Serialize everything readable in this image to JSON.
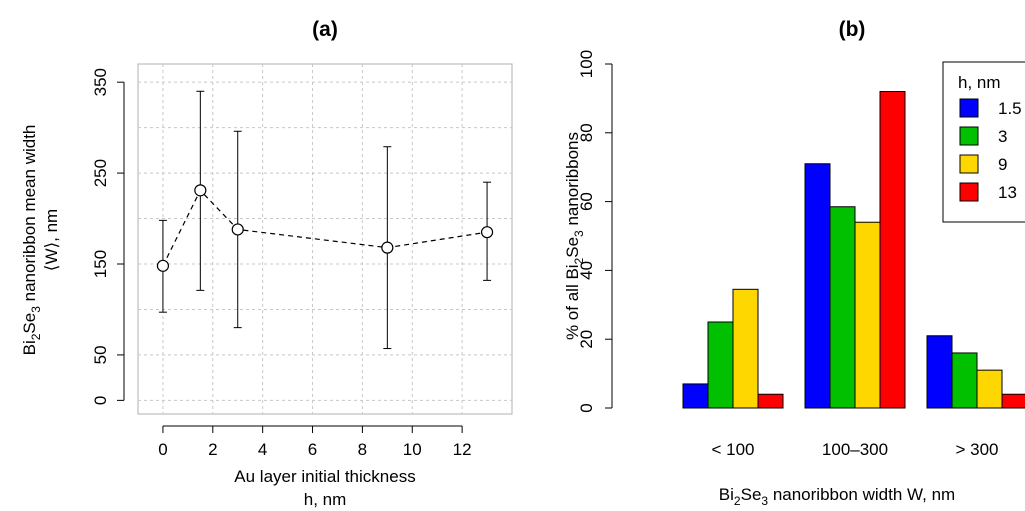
{
  "chart_data": [
    {
      "type": "scatter",
      "title": "(a)",
      "xlabel_line1": "Au layer initial thickness",
      "xlabel_line2": "h, nm",
      "ylabel_line1_pre": "Bi",
      "ylabel_line1_sub1": "2",
      "ylabel_line1_mid": "Se",
      "ylabel_line1_sub2": "3",
      "ylabel_line1_post": " nanoribbon mean width",
      "ylabel_line2": "⟨W⟩, nm",
      "xlim": [
        -1,
        14
      ],
      "ylim": [
        -15,
        370
      ],
      "xticks": [
        0,
        2,
        4,
        6,
        8,
        10,
        12
      ],
      "yticks": [
        0,
        50,
        150,
        250,
        350
      ],
      "xgrid": [
        0,
        2,
        4,
        6,
        8,
        10,
        12
      ],
      "ygrid": [
        0,
        50,
        100,
        150,
        200,
        250,
        300,
        350
      ],
      "grid": true,
      "points": [
        {
          "x": 0,
          "y": 148,
          "lo": 97,
          "hi": 198
        },
        {
          "x": 1.5,
          "y": 231,
          "lo": 121,
          "hi": 340
        },
        {
          "x": 3,
          "y": 188,
          "lo": 80,
          "hi": 296
        },
        {
          "x": 9,
          "y": 168,
          "lo": 57,
          "hi": 279
        },
        {
          "x": 13,
          "y": 185,
          "lo": 132,
          "hi": 240
        }
      ]
    },
    {
      "type": "bar",
      "title": "(b)",
      "xlabel_pre": "Bi",
      "xlabel_sub1": "2",
      "xlabel_mid": "Se",
      "xlabel_sub2": "3",
      "xlabel_post": " nanoribbon width W, nm",
      "ylabel_pre": "% of all Bi",
      "ylabel_sub1": "2",
      "ylabel_mid": "Se",
      "ylabel_sub2": "3",
      "ylabel_post": " nanoribbons",
      "ylim": [
        0,
        100
      ],
      "yticks": [
        0,
        20,
        40,
        60,
        80,
        100
      ],
      "categories": [
        "< 100",
        "100–300",
        "> 300"
      ],
      "legend_title": "h, nm",
      "legend_position": "top-right",
      "series": [
        {
          "name": "1.5",
          "color": "#0000ff",
          "values": [
            7,
            71,
            21
          ]
        },
        {
          "name": "3",
          "color": "#00c000",
          "values": [
            25,
            58.5,
            16
          ]
        },
        {
          "name": "9",
          "color": "#ffd700",
          "values": [
            34.5,
            54,
            11
          ]
        },
        {
          "name": "13",
          "color": "#ff0000",
          "values": [
            4,
            92,
            4
          ]
        }
      ]
    }
  ]
}
